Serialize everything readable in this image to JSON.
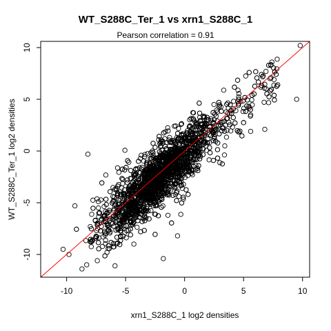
{
  "chart_data": {
    "type": "scatter",
    "title": "WT_S288C_Ter_1 vs xrn1_S288C_1",
    "subtitle": "Pearson correlation =  0.91",
    "xlabel": "xrn1_S288C_1 log2 densities",
    "ylabel": "WT_S288C_Ter_1 log2 densities",
    "xlim": [
      -12.2,
      10.6
    ],
    "ylim": [
      -12.2,
      10.6
    ],
    "x_ticks": [
      -10,
      -5,
      0,
      5,
      10
    ],
    "y_ticks": [
      -10,
      -5,
      0,
      5,
      10
    ],
    "x_tick_labels": [
      "-10",
      "-5",
      "0",
      "5",
      "10"
    ],
    "y_tick_labels": [
      "-10",
      "-5",
      "0",
      "5",
      "10"
    ],
    "grid": false,
    "legend": "none",
    "marker": "open-circle",
    "colors": {
      "points": "#000000",
      "fit_line": "#ff0000",
      "axes": "#000000"
    },
    "fit_line": {
      "slope": 1.0,
      "intercept": 0.0
    },
    "core_point_count": 2600,
    "highlighted_points": [
      {
        "x": 9.8,
        "y": 10.2
      },
      {
        "x": 9.5,
        "y": 5.0
      },
      {
        "x": -8.2,
        "y": -0.3
      },
      {
        "x": -9.3,
        "y": -5.3
      },
      {
        "x": -10.3,
        "y": -9.5
      },
      {
        "x": -9.8,
        "y": -10.0
      },
      {
        "x": -8.7,
        "y": -11.4
      },
      {
        "x": -8.3,
        "y": -11.0
      },
      {
        "x": -4.3,
        "y": -9.0
      },
      {
        "x": -0.6,
        "y": -8.2
      },
      {
        "x": 5.6,
        "y": 1.9
      },
      {
        "x": 6.8,
        "y": 2.1
      },
      {
        "x": 7.4,
        "y": 8.6
      },
      {
        "x": 6.9,
        "y": 7.7
      },
      {
        "x": -2.2,
        "y": 1.1
      },
      {
        "x": -5.9,
        "y": -11.1
      },
      {
        "x": -7.4,
        "y": -10.6
      },
      {
        "x": -1.8,
        "y": -10.4
      }
    ]
  }
}
